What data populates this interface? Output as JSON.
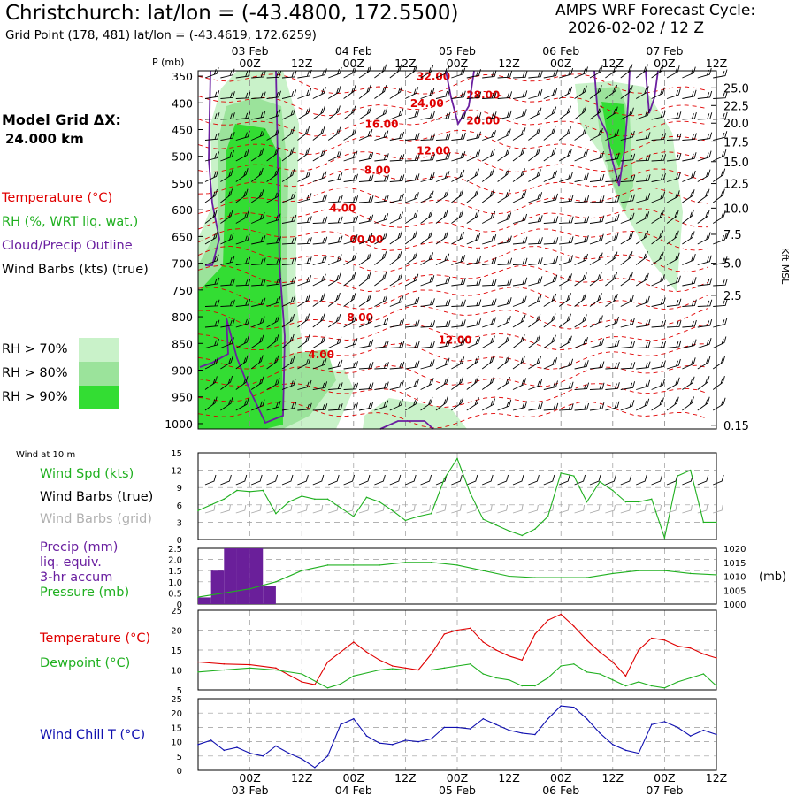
{
  "header": {
    "title": "Christchurch:  lat/lon = (-43.4800, 172.5500)",
    "subtitle": "Grid Point (178, 481) lat/lon = (-43.4619, 172.6259)",
    "cycle_label": "AMPS WRF Forecast Cycle:",
    "cycle_value": "2026-02-02 / 12  Z",
    "grid_label": "Model Grid ΔX:",
    "grid_value": "24.000 km"
  },
  "colors": {
    "red": "#e00000",
    "green": "#20b020",
    "purple": "#6a1fa0",
    "blue": "#1010b0",
    "gray": "#aaaaaa",
    "rh70": "#c9f2c9",
    "rh80": "#9be39b",
    "rh90": "#33dd33",
    "precip": "#6a1f9a"
  },
  "time_axis": {
    "top_dates": [
      "03 Feb",
      "04 Feb",
      "05 Feb",
      "06 Feb",
      "07 Feb"
    ],
    "top_ticks": [
      "00Z",
      "12Z",
      "00Z",
      "12Z",
      "00Z",
      "12Z",
      "00Z",
      "12Z",
      "00Z",
      "12Z"
    ],
    "bottom_ticks": [
      "00Z",
      "12Z",
      "00Z",
      "12Z",
      "00Z",
      "12Z",
      "00Z",
      "12Z",
      "00Z",
      "12Z"
    ],
    "bottom_dates": [
      "03 Feb",
      "04 Feb",
      "05 Feb",
      "06 Feb",
      "07 Feb"
    ],
    "tick_hours": [
      12,
      24,
      36,
      48,
      60,
      72,
      84,
      96,
      108,
      120
    ],
    "date_hours": [
      12,
      36,
      60,
      84,
      108
    ],
    "start_hour": 0,
    "end_hour": 120
  },
  "chart_data": [
    {
      "type": "heatmap",
      "name": "vertical-cross-section",
      "ylabel": "P (mb)",
      "y2label": "Kft MSL",
      "pressure_levels": [
        "350",
        "400",
        "450",
        "500",
        "550",
        "600",
        "650",
        "700",
        "750",
        "800",
        "850",
        "900",
        "950",
        "1000"
      ],
      "pressure_values": [
        350,
        400,
        450,
        500,
        550,
        600,
        650,
        700,
        750,
        800,
        850,
        900,
        950,
        1000
      ],
      "height_labels": [
        "25.0",
        "22.5",
        "20.0",
        "17.5",
        "15.0",
        "12.5",
        "10.0",
        "7.5",
        "5.0",
        "2.5",
        "0.15"
      ],
      "height_pressures": [
        372,
        405,
        438,
        473,
        510,
        551,
        597,
        646,
        700,
        760,
        1003
      ],
      "legend": {
        "temperature": "Temperature (°C)",
        "rh": "RH (%, WRT liq. wat.)",
        "cloud": "Cloud/Precip Outline",
        "wind": "Wind Barbs (kts) (true)",
        "rh70": "RH > 70%",
        "rh80": "RH > 80%",
        "rh90": "RH > 90%"
      },
      "temperature_labels": [
        {
          "text": "32.00",
          "hour": 54.5,
          "p": 357
        },
        {
          "text": "24.00",
          "hour": 53,
          "p": 408
        },
        {
          "text": "28.00",
          "hour": 66,
          "p": 392
        },
        {
          "text": "20.00",
          "hour": 66,
          "p": 440
        },
        {
          "text": "16.00",
          "hour": 42.5,
          "p": 447
        },
        {
          "text": "12.00",
          "hour": 54.5,
          "p": 496
        },
        {
          "text": "8.00",
          "hour": 41.5,
          "p": 533
        },
        {
          "text": "4.00",
          "hour": 33.5,
          "p": 604
        },
        {
          "text": "00.00",
          "hour": 39,
          "p": 663
        },
        {
          "text": "8.00",
          "hour": 37.5,
          "p": 808
        },
        {
          "text": "12.00",
          "hour": 59.5,
          "p": 850
        },
        {
          "text": "4.00",
          "hour": 28.5,
          "p": 878
        }
      ]
    },
    {
      "type": "line",
      "name": "wind-10m",
      "title": "Wind at 10 m",
      "labels": [
        "Wind Spd (kts)",
        "Wind Barbs (true)",
        "Wind Barbs (grid)"
      ],
      "ylim": [
        0,
        15
      ],
      "yticks": [
        "0",
        "3",
        "6",
        "9",
        "12",
        "15"
      ],
      "series": [
        {
          "name": "Wind Spd (kts)",
          "x": [
            0,
            3,
            6,
            9,
            12,
            15,
            18,
            21,
            24,
            27,
            30,
            33,
            36,
            39,
            42,
            45,
            48,
            51,
            54,
            57,
            60,
            63,
            66,
            69,
            72,
            75,
            78,
            81,
            84,
            87,
            90,
            93,
            96,
            99,
            102,
            105,
            108,
            111,
            114,
            117,
            120
          ],
          "values": [
            5,
            6,
            7,
            8.5,
            8.3,
            8.5,
            4.5,
            6.5,
            7.5,
            7,
            7,
            5.5,
            4,
            7.3,
            6.5,
            5,
            3.3,
            4,
            4.5,
            10.5,
            14,
            8,
            3.5,
            2.5,
            1.5,
            0.7,
            1.8,
            4,
            11.5,
            11,
            6.5,
            10,
            8.5,
            6.5,
            6.5,
            7,
            0.3,
            11,
            12,
            3,
            3
          ]
        }
      ]
    },
    {
      "type": "bar",
      "name": "precip-pressure",
      "labels": [
        "Precip (mm)",
        "liq. equiv.",
        "3-hr accum",
        "Pressure (mb)"
      ],
      "ylim": [
        0,
        2.5
      ],
      "yticks": [
        "0",
        "0.5",
        "1.0",
        "1.5",
        "2.0",
        "2.5"
      ],
      "y2label": "(mb)",
      "y2lim": [
        1000,
        1020
      ],
      "y2ticks": [
        "1000",
        "1005",
        "1010",
        "1015",
        "1020"
      ],
      "precip": {
        "x": [
          0,
          3,
          6,
          9,
          12,
          15
        ],
        "values": [
          0.3,
          1.5,
          2.5,
          2.5,
          2.5,
          0.8
        ]
      },
      "pressure": {
        "x": [
          0,
          6,
          12,
          18,
          24,
          30,
          36,
          42,
          48,
          54,
          60,
          66,
          72,
          78,
          84,
          90,
          96,
          102,
          108,
          114,
          120
        ],
        "values": [
          1002.5,
          1004,
          1005.5,
          1008,
          1012,
          1014,
          1014,
          1014,
          1015,
          1015,
          1014,
          1012,
          1010,
          1009.5,
          1009.5,
          1009.5,
          1011,
          1012,
          1012,
          1011,
          1010.5
        ]
      }
    },
    {
      "type": "line",
      "name": "temp-dewpoint",
      "labels": [
        "Temperature (°C)",
        "Dewpoint (°C)"
      ],
      "ylim": [
        5,
        25
      ],
      "yticks": [
        "5",
        "10",
        "15",
        "20",
        "25"
      ],
      "series": [
        {
          "name": "Temperature (°C)",
          "x": [
            0,
            6,
            12,
            18,
            24,
            27,
            30,
            36,
            39,
            42,
            45,
            48,
            51,
            54,
            57,
            60,
            63,
            66,
            69,
            72,
            75,
            78,
            81,
            84,
            87,
            90,
            93,
            96,
            99,
            102,
            105,
            108,
            111,
            114,
            117,
            120
          ],
          "values": [
            12,
            11.5,
            11.3,
            10.5,
            7,
            6.3,
            12,
            17,
            14.5,
            12.5,
            11,
            10.5,
            10,
            14,
            19,
            20,
            20.5,
            17,
            15,
            13.5,
            12.5,
            19,
            22.5,
            24,
            21,
            17.5,
            14.5,
            12,
            8.5,
            15,
            18,
            17.5,
            16,
            15.5,
            14,
            13
          ]
        },
        {
          "name": "Dewpoint (°C)",
          "x": [
            0,
            6,
            12,
            18,
            24,
            30,
            33,
            36,
            42,
            45,
            48,
            54,
            57,
            60,
            63,
            66,
            69,
            72,
            75,
            78,
            81,
            84,
            87,
            90,
            93,
            96,
            99,
            102,
            105,
            108,
            111,
            114,
            117,
            120
          ],
          "values": [
            9.5,
            10,
            10.5,
            10,
            9,
            5.5,
            6.5,
            8.5,
            10,
            10.3,
            10,
            10,
            10.5,
            11,
            11.5,
            9,
            8,
            7.5,
            6,
            6,
            8,
            11,
            11.5,
            9.5,
            9,
            7.5,
            6,
            7,
            6,
            5.5,
            7,
            8,
            9,
            6
          ]
        }
      ]
    },
    {
      "type": "line",
      "name": "wind-chill",
      "labels": [
        "Wind Chill T (°C)"
      ],
      "ylim": [
        0,
        25
      ],
      "yticks": [
        "0",
        "5",
        "10",
        "15",
        "20",
        "25"
      ],
      "series": [
        {
          "name": "Wind Chill T (°C)",
          "x": [
            0,
            3,
            6,
            9,
            12,
            15,
            18,
            21,
            24,
            27,
            30,
            33,
            36,
            39,
            42,
            45,
            48,
            51,
            54,
            57,
            60,
            63,
            66,
            69,
            72,
            75,
            78,
            81,
            84,
            87,
            90,
            93,
            96,
            99,
            102,
            105,
            108,
            111,
            114,
            117,
            120
          ],
          "values": [
            9,
            10.5,
            7,
            8,
            6,
            5,
            8.5,
            6,
            4,
            1,
            5,
            16,
            18,
            12,
            9.5,
            9,
            10.5,
            10,
            11,
            15,
            15,
            14.5,
            18,
            16,
            14,
            13,
            12.5,
            18,
            22.5,
            22,
            18,
            13,
            9,
            7,
            6,
            16,
            17,
            15,
            12,
            14,
            12.5
          ]
        }
      ]
    }
  ]
}
